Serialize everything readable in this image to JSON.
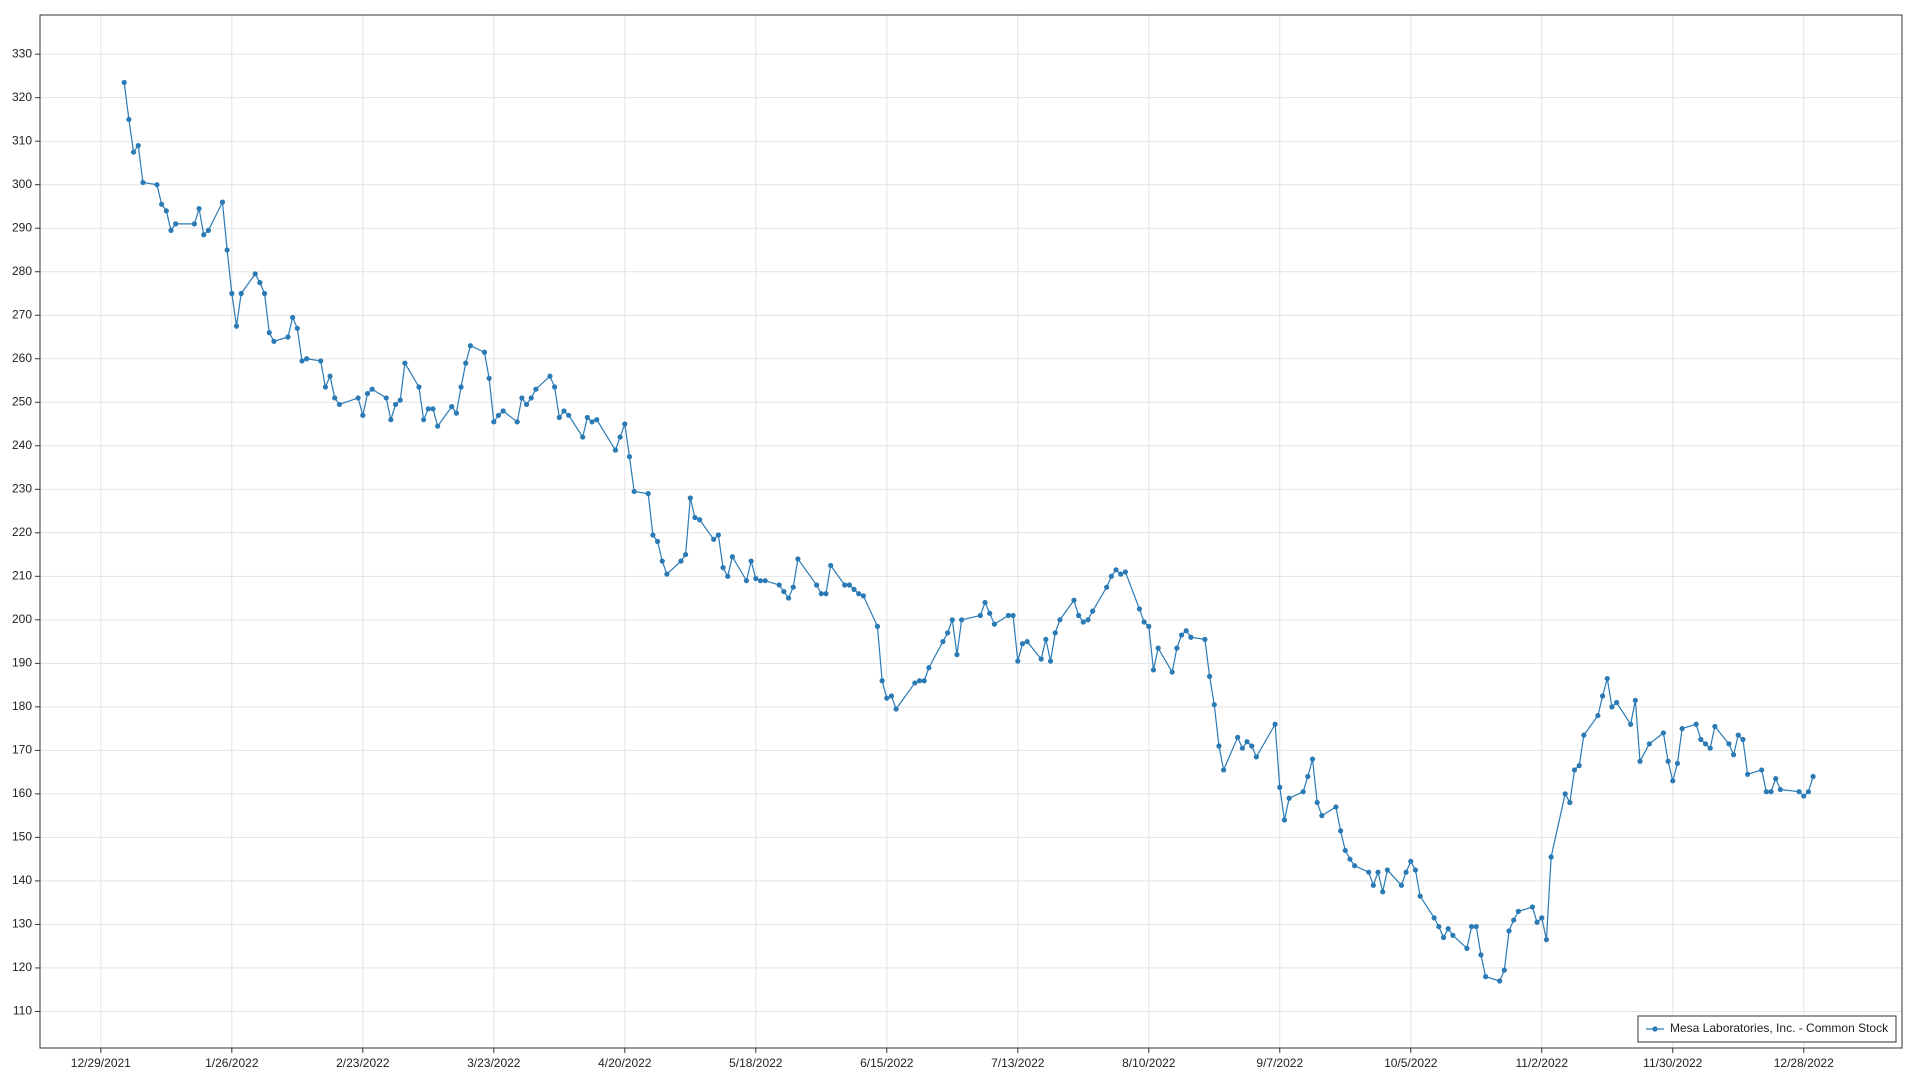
{
  "chart_data": {
    "type": "line",
    "x": [
      "1/3/2022",
      "1/4/2022",
      "1/5/2022",
      "1/6/2022",
      "1/7/2022",
      "1/10/2022",
      "1/11/2022",
      "1/12/2022",
      "1/13/2022",
      "1/14/2022",
      "1/18/2022",
      "1/19/2022",
      "1/20/2022",
      "1/21/2022",
      "1/24/2022",
      "1/25/2022",
      "1/26/2022",
      "1/27/2022",
      "1/28/2022",
      "1/31/2022",
      "2/1/2022",
      "2/2/2022",
      "2/3/2022",
      "2/4/2022",
      "2/7/2022",
      "2/8/2022",
      "2/9/2022",
      "2/10/2022",
      "2/11/2022",
      "2/14/2022",
      "2/15/2022",
      "2/16/2022",
      "2/17/2022",
      "2/18/2022",
      "2/22/2022",
      "2/23/2022",
      "2/24/2022",
      "2/25/2022",
      "2/28/2022",
      "3/1/2022",
      "3/2/2022",
      "3/3/2022",
      "3/4/2022",
      "3/7/2022",
      "3/8/2022",
      "3/9/2022",
      "3/10/2022",
      "3/11/2022",
      "3/14/2022",
      "3/15/2022",
      "3/16/2022",
      "3/17/2022",
      "3/18/2022",
      "3/21/2022",
      "3/22/2022",
      "3/23/2022",
      "3/24/2022",
      "3/25/2022",
      "3/28/2022",
      "3/29/2022",
      "3/30/2022",
      "3/31/2022",
      "4/1/2022",
      "4/4/2022",
      "4/5/2022",
      "4/6/2022",
      "4/7/2022",
      "4/8/2022",
      "4/11/2022",
      "4/12/2022",
      "4/13/2022",
      "4/14/2022",
      "4/18/2022",
      "4/19/2022",
      "4/20/2022",
      "4/21/2022",
      "4/22/2022",
      "4/25/2022",
      "4/26/2022",
      "4/27/2022",
      "4/28/2022",
      "4/29/2022",
      "5/2/2022",
      "5/3/2022",
      "5/4/2022",
      "5/5/2022",
      "5/6/2022",
      "5/9/2022",
      "5/10/2022",
      "5/11/2022",
      "5/12/2022",
      "5/13/2022",
      "5/16/2022",
      "5/17/2022",
      "5/18/2022",
      "5/19/2022",
      "5/20/2022",
      "5/23/2022",
      "5/24/2022",
      "5/25/2022",
      "5/26/2022",
      "5/27/2022",
      "5/31/2022",
      "6/1/2022",
      "6/2/2022",
      "6/3/2022",
      "6/6/2022",
      "6/7/2022",
      "6/8/2022",
      "6/9/2022",
      "6/10/2022",
      "6/13/2022",
      "6/14/2022",
      "6/15/2022",
      "6/16/2022",
      "6/17/2022",
      "6/21/2022",
      "6/22/2022",
      "6/23/2022",
      "6/24/2022",
      "6/27/2022",
      "6/28/2022",
      "6/29/2022",
      "6/30/2022",
      "7/1/2022",
      "7/5/2022",
      "7/6/2022",
      "7/7/2022",
      "7/8/2022",
      "7/11/2022",
      "7/12/2022",
      "7/13/2022",
      "7/14/2022",
      "7/15/2022",
      "7/18/2022",
      "7/19/2022",
      "7/20/2022",
      "7/21/2022",
      "7/22/2022",
      "7/25/2022",
      "7/26/2022",
      "7/27/2022",
      "7/28/2022",
      "7/29/2022",
      "8/1/2022",
      "8/2/2022",
      "8/3/2022",
      "8/4/2022",
      "8/5/2022",
      "8/8/2022",
      "8/9/2022",
      "8/10/2022",
      "8/11/2022",
      "8/12/2022",
      "8/15/2022",
      "8/16/2022",
      "8/17/2022",
      "8/18/2022",
      "8/19/2022",
      "8/22/2022",
      "8/23/2022",
      "8/24/2022",
      "8/25/2022",
      "8/26/2022",
      "8/29/2022",
      "8/30/2022",
      "8/31/2022",
      "9/1/2022",
      "9/2/2022",
      "9/6/2022",
      "9/7/2022",
      "9/8/2022",
      "9/9/2022",
      "9/12/2022",
      "9/13/2022",
      "9/14/2022",
      "9/15/2022",
      "9/16/2022",
      "9/19/2022",
      "9/20/2022",
      "9/21/2022",
      "9/22/2022",
      "9/23/2022",
      "9/26/2022",
      "9/27/2022",
      "9/28/2022",
      "9/29/2022",
      "9/30/2022",
      "10/3/2022",
      "10/4/2022",
      "10/5/2022",
      "10/6/2022",
      "10/7/2022",
      "10/10/2022",
      "10/11/2022",
      "10/12/2022",
      "10/13/2022",
      "10/14/2022",
      "10/17/2022",
      "10/18/2022",
      "10/19/2022",
      "10/20/2022",
      "10/21/2022",
      "10/24/2022",
      "10/25/2022",
      "10/26/2022",
      "10/27/2022",
      "10/28/2022",
      "10/31/2022",
      "11/1/2022",
      "11/2/2022",
      "11/3/2022",
      "11/4/2022",
      "11/7/2022",
      "11/8/2022",
      "11/9/2022",
      "11/10/2022",
      "11/11/2022",
      "11/14/2022",
      "11/15/2022",
      "11/16/2022",
      "11/17/2022",
      "11/18/2022",
      "11/21/2022",
      "11/22/2022",
      "11/23/2022",
      "11/25/2022",
      "11/28/2022",
      "11/29/2022",
      "11/30/2022",
      "12/1/2022",
      "12/2/2022",
      "12/5/2022",
      "12/6/2022",
      "12/7/2022",
      "12/8/2022",
      "12/9/2022",
      "12/12/2022",
      "12/13/2022",
      "12/14/2022",
      "12/15/2022",
      "12/16/2022",
      "12/19/2022",
      "12/20/2022",
      "12/21/2022",
      "12/22/2022",
      "12/23/2022",
      "12/27/2022",
      "12/28/2022",
      "12/29/2022",
      "12/30/2022"
    ],
    "series": [
      {
        "name": "Mesa Laboratories, Inc. - Common Stock",
        "color": "#2a7ab5",
        "values": [
          323.5,
          315,
          307.5,
          309,
          300.5,
          300,
          295.5,
          294,
          289.5,
          291,
          291,
          294.5,
          288.5,
          289.5,
          296,
          285,
          275,
          267.5,
          275,
          279.5,
          277.5,
          275,
          266,
          264,
          265,
          269.5,
          267,
          259.5,
          260,
          259.5,
          253.5,
          256,
          251,
          249.5,
          251,
          247,
          252,
          253,
          251,
          246,
          249.5,
          250.5,
          259,
          253.5,
          246,
          248.5,
          248.5,
          244.5,
          249,
          247.5,
          253.5,
          259,
          263,
          261.5,
          255.5,
          245.5,
          247,
          248,
          245.5,
          251,
          249.5,
          251,
          253,
          256,
          253.5,
          246.5,
          248,
          247,
          242,
          246.5,
          245.5,
          246,
          239,
          242,
          245,
          237.5,
          229.5,
          229,
          219.5,
          218,
          213.5,
          210.5,
          213.5,
          215,
          228,
          223.5,
          223,
          218.5,
          219.5,
          212,
          210,
          214.5,
          209,
          213.5,
          209.5,
          209,
          209,
          208,
          206.5,
          205,
          207.5,
          214,
          208,
          206,
          206,
          212.5,
          208,
          208,
          207,
          206,
          205.5,
          198.5,
          186,
          182,
          182.5,
          179.5,
          185.5,
          186,
          186,
          189,
          195,
          197,
          200,
          192,
          200,
          201,
          204,
          201.5,
          199,
          201,
          201,
          190.5,
          194.5,
          195,
          191,
          195.5,
          190.5,
          197,
          200,
          204.5,
          201,
          199.5,
          200,
          202,
          207.5,
          210,
          211.5,
          210.5,
          211,
          202.5,
          199.5,
          198.5,
          188.5,
          193.5,
          188,
          193.5,
          196.5,
          197.5,
          196,
          195.5,
          187,
          180.5,
          171,
          165.5,
          173,
          170.5,
          172,
          171,
          168.5,
          176,
          161.5,
          154,
          159,
          160.5,
          164,
          168,
          158,
          155,
          157,
          151.5,
          147,
          145,
          143.5,
          142,
          139,
          142,
          137.5,
          142.5,
          139,
          142,
          144.5,
          142.5,
          136.5,
          131.5,
          129.5,
          127,
          129,
          127.5,
          124.5,
          129.5,
          129.5,
          123,
          118,
          117,
          119.5,
          128.5,
          131,
          133,
          134,
          130.5,
          131.5,
          126.5,
          145.5,
          160,
          158,
          165.5,
          166.5,
          173.5,
          178,
          182.5,
          186.5,
          180,
          181,
          176,
          181.5,
          167.5,
          171.5,
          174,
          167.5,
          163,
          167,
          175,
          176,
          172.5,
          171.5,
          170.5,
          175.5,
          171.5,
          169,
          173.5,
          172.5,
          164.5,
          165.5,
          160.5,
          160.5,
          163.5,
          161,
          160.5,
          159.5,
          160.5,
          164
        ]
      }
    ],
    "xlim": [
      "12/16/2021",
      "1/18/2023"
    ],
    "xticks": [
      "12/29/2021",
      "1/26/2022",
      "2/23/2022",
      "3/23/2022",
      "4/20/2022",
      "5/18/2022",
      "6/15/2022",
      "7/13/2022",
      "8/10/2022",
      "9/7/2022",
      "10/5/2022",
      "11/2/2022",
      "11/30/2022",
      "12/28/2022"
    ],
    "ylim": [
      101.6,
      339
    ],
    "yticks": [
      110,
      120,
      130,
      140,
      150,
      160,
      170,
      180,
      190,
      200,
      210,
      220,
      230,
      240,
      250,
      260,
      270,
      280,
      290,
      300,
      310,
      320,
      330
    ],
    "grid": true,
    "legend": "lower right"
  }
}
